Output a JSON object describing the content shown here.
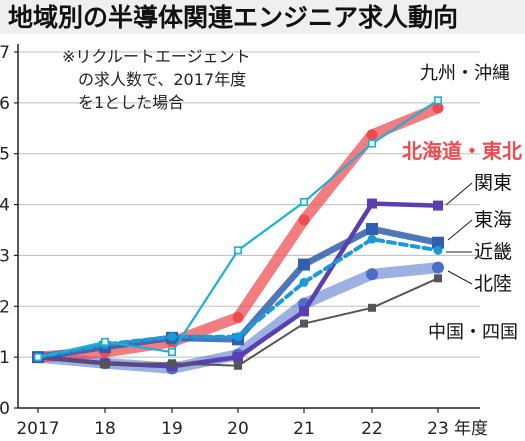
{
  "title": "地域別の半導体関連エンジニア求人動向",
  "chart_data": {
    "type": "line",
    "title": "地域別の半導体関連エンジニア求人動向",
    "note": [
      "※リクルートエージェント",
      "の求人数で、2017年度",
      "を1とした場合"
    ],
    "categories": [
      "2017",
      "18",
      "19",
      "20",
      "21",
      "22",
      "23"
    ],
    "x_unit": "年度",
    "xlabel": "",
    "ylabel": "",
    "ylim": [
      0,
      7
    ],
    "yticks": [
      "0",
      "1",
      "2",
      "3",
      "4",
      "5",
      "6",
      "7"
    ],
    "grid": "horizontal",
    "series": [
      {
        "name": "九州・沖縄",
        "color": "#1ab0d8",
        "marker": "square-open",
        "values": [
          1.0,
          1.3,
          1.1,
          3.1,
          4.05,
          5.2,
          6.05
        ]
      },
      {
        "name": "北海道・東北",
        "color": "#ee4a4f",
        "marker": "circle",
        "values": [
          1.0,
          1.1,
          1.3,
          1.78,
          3.7,
          5.37,
          5.9
        ]
      },
      {
        "name": "関東",
        "color": "#5c3fae",
        "marker": "square",
        "values": [
          1.0,
          0.88,
          0.82,
          1.0,
          1.9,
          4.02,
          3.98
        ]
      },
      {
        "name": "東海",
        "color": "#2f5fae",
        "marker": "square",
        "values": [
          1.0,
          1.2,
          1.38,
          1.35,
          2.82,
          3.52,
          3.25
        ]
      },
      {
        "name": "近畿",
        "color": "#1a9ad8",
        "marker": "circle",
        "values": [
          1.0,
          1.25,
          1.4,
          1.4,
          2.47,
          3.32,
          3.1
        ]
      },
      {
        "name": "北陸",
        "color": "#4a6fc8",
        "marker": "circle",
        "values": [
          1.0,
          0.88,
          0.78,
          1.05,
          2.05,
          2.63,
          2.76
        ]
      },
      {
        "name": "中国・四国",
        "color": "#555555",
        "marker": "square",
        "values": [
          1.0,
          0.86,
          0.88,
          0.83,
          1.66,
          1.97,
          2.55
        ]
      }
    ]
  },
  "colors": {
    "title_bg": "#efefef",
    "axis": "#222222",
    "grid": "#bdbdbd",
    "highlight_label": "#ee4a4f"
  }
}
